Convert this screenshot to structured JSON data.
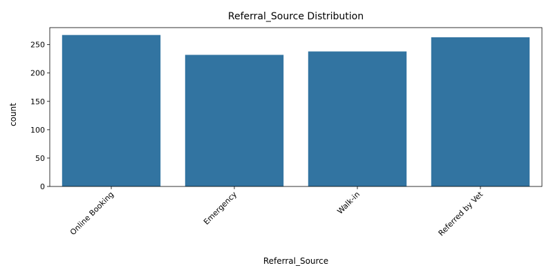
{
  "chart_data": {
    "type": "bar",
    "title": "Referral_Source Distribution",
    "xlabel": "Referral_Source",
    "ylabel": "count",
    "categories": [
      "Online Booking",
      "Emergency",
      "Walk-in",
      "Referred by Vet"
    ],
    "values": [
      267,
      232,
      238,
      263
    ],
    "ylim": [
      0,
      280
    ],
    "yticks": [
      0,
      50,
      100,
      150,
      200,
      250
    ],
    "xtick_rotation_deg": 45,
    "grid": false,
    "legend": "none",
    "bar_color": "#3274a1"
  }
}
